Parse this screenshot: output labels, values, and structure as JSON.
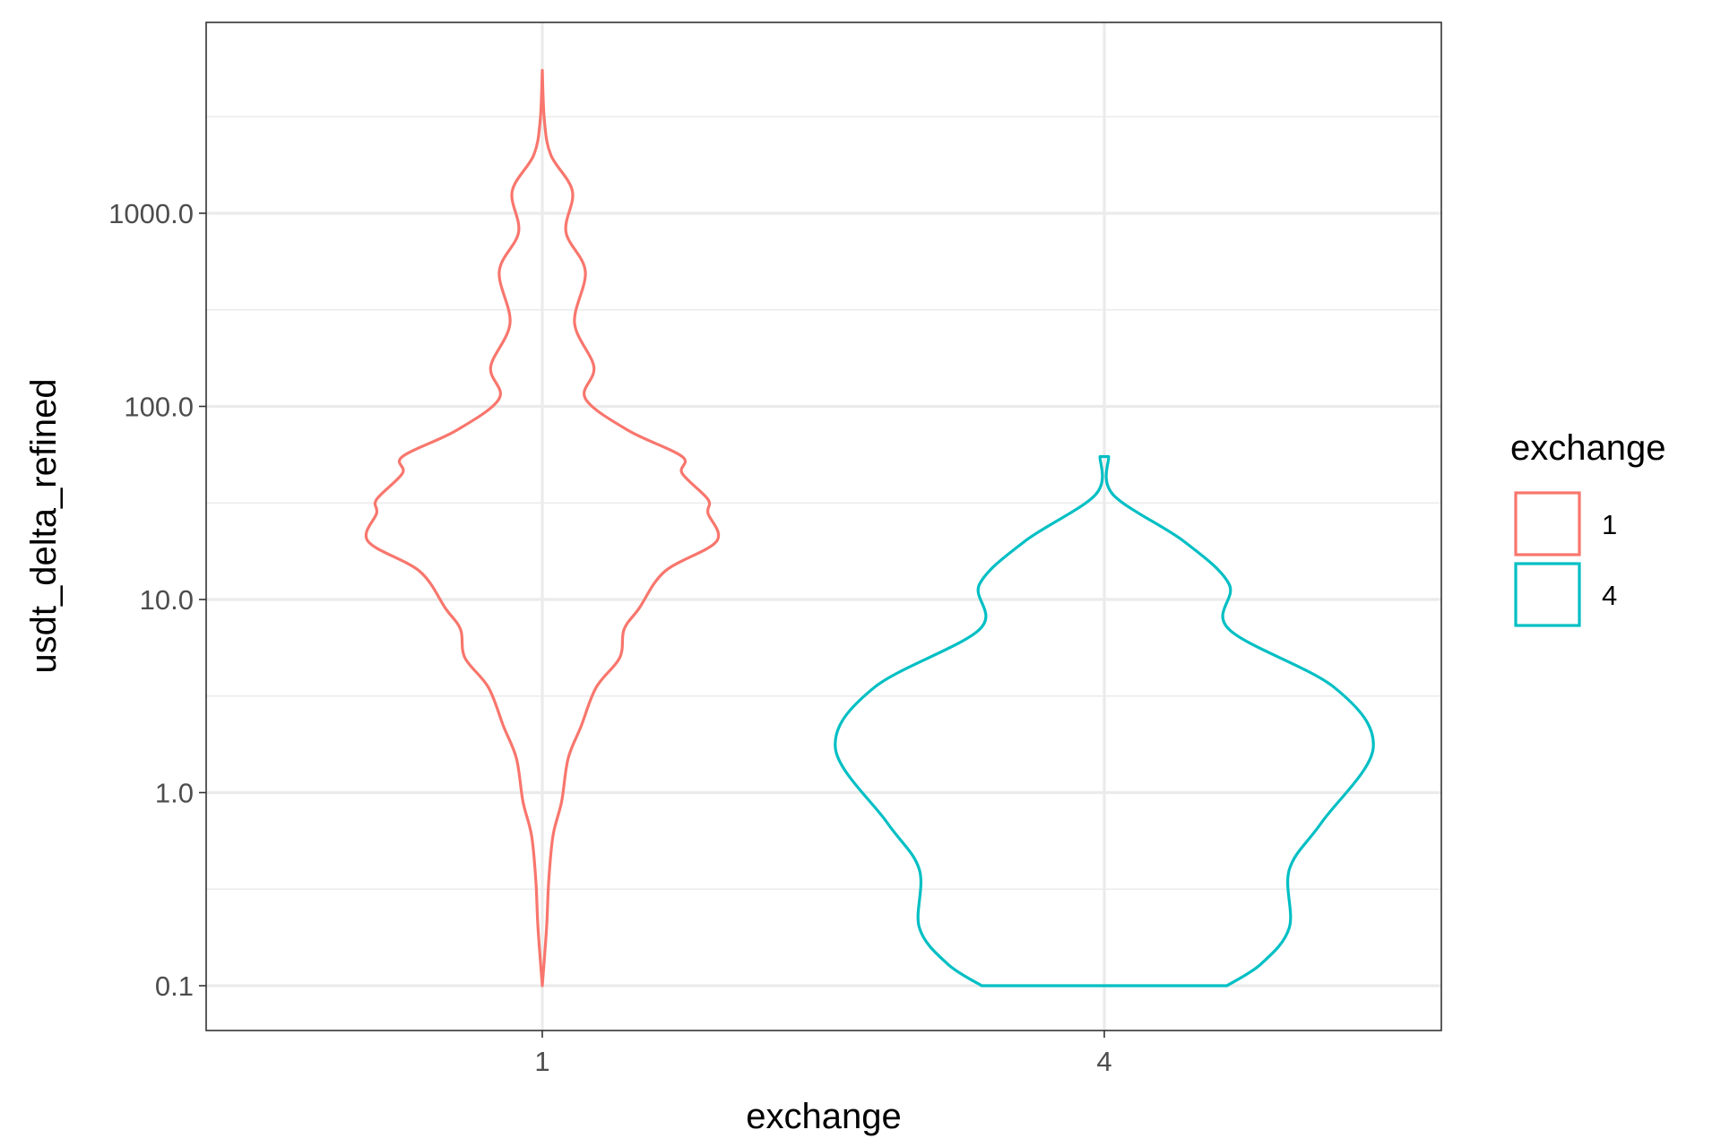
{
  "chart_data": {
    "type": "violin",
    "xlabel": "exchange",
    "ylabel": "usdt_delta_refined",
    "y_scale": "log10",
    "ylim": [
      0.06,
      8000
    ],
    "grid": true,
    "categories": [
      "1",
      "4"
    ],
    "y_ticks": [
      0.1,
      1,
      10,
      100,
      1000
    ],
    "y_tick_labels": [
      "0.1",
      "1.0",
      "10.0",
      "100.0",
      "1000.0"
    ],
    "legend": {
      "title": "exchange",
      "position": "right",
      "entries": [
        {
          "label": "1",
          "color": "#F8766D"
        },
        {
          "label": "4",
          "color": "#00BFC4"
        }
      ]
    },
    "series": [
      {
        "category": "1",
        "color": "#F8766D",
        "y_min": 0.1,
        "y_max": 5500,
        "density_profile": [
          {
            "y": 0.1,
            "w": 0.0
          },
          {
            "y": 0.2,
            "w": 0.02
          },
          {
            "y": 0.35,
            "w": 0.03
          },
          {
            "y": 0.6,
            "w": 0.05
          },
          {
            "y": 0.9,
            "w": 0.09
          },
          {
            "y": 1.5,
            "w": 0.12
          },
          {
            "y": 2.2,
            "w": 0.18
          },
          {
            "y": 3.5,
            "w": 0.25
          },
          {
            "y": 5,
            "w": 0.36
          },
          {
            "y": 7,
            "w": 0.38
          },
          {
            "y": 9,
            "w": 0.45
          },
          {
            "y": 14,
            "w": 0.57
          },
          {
            "y": 20,
            "w": 0.81
          },
          {
            "y": 28,
            "w": 0.77
          },
          {
            "y": 33,
            "w": 0.77
          },
          {
            "y": 45,
            "w": 0.65
          },
          {
            "y": 55,
            "w": 0.65
          },
          {
            "y": 75,
            "w": 0.4
          },
          {
            "y": 110,
            "w": 0.2
          },
          {
            "y": 160,
            "w": 0.24
          },
          {
            "y": 270,
            "w": 0.15
          },
          {
            "y": 500,
            "w": 0.2
          },
          {
            "y": 800,
            "w": 0.11
          },
          {
            "y": 1300,
            "w": 0.14
          },
          {
            "y": 2000,
            "w": 0.04
          },
          {
            "y": 3000,
            "w": 0.01
          },
          {
            "y": 5500,
            "w": 0.0
          }
        ]
      },
      {
        "category": "4",
        "color": "#00BFC4",
        "y_min": 0.1,
        "y_max": 55,
        "density_profile": [
          {
            "y": 0.1,
            "w": 0.57
          },
          {
            "y": 0.13,
            "w": 0.73
          },
          {
            "y": 0.2,
            "w": 0.86
          },
          {
            "y": 0.4,
            "w": 0.86
          },
          {
            "y": 0.7,
            "w": 1.01
          },
          {
            "y": 1.7,
            "w": 1.25
          },
          {
            "y": 3.5,
            "w": 1.07
          },
          {
            "y": 7,
            "w": 0.58
          },
          {
            "y": 12,
            "w": 0.58
          },
          {
            "y": 20,
            "w": 0.37
          },
          {
            "y": 35,
            "w": 0.04
          },
          {
            "y": 55,
            "w": 0.02
          }
        ]
      }
    ]
  }
}
